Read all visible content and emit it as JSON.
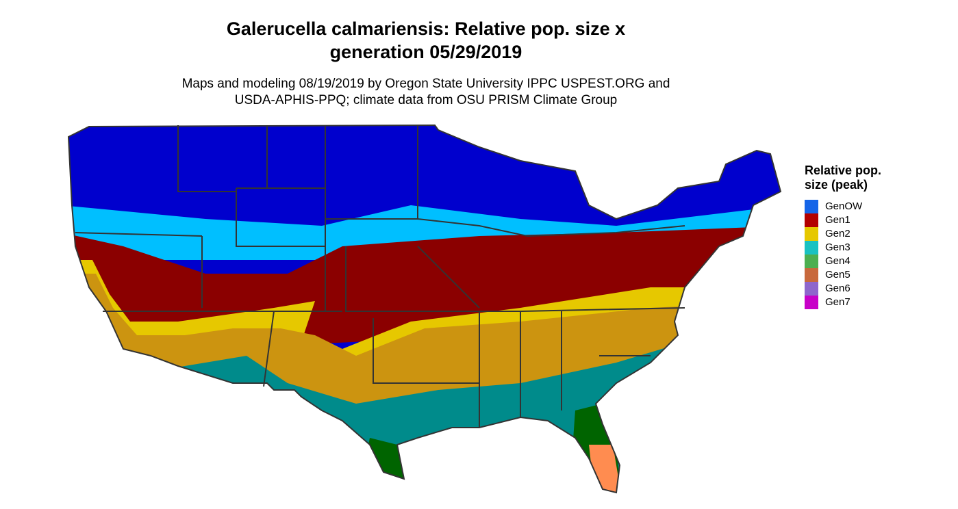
{
  "title": [
    "Galerucella calmariensis: Relative pop. size x",
    "generation 05/29/2019"
  ],
  "subtitle": [
    "Maps and modeling 08/19/2019 by Oregon State University IPPC USPEST.ORG and",
    "USDA-APHIS-PPQ; climate data from OSU PRISM Climate Group"
  ],
  "legend": {
    "title": [
      "Relative pop.",
      "size (peak)"
    ],
    "items": [
      {
        "label": "GenOW",
        "color": "#1565e8"
      },
      {
        "label": "Gen1",
        "color": "#b30000"
      },
      {
        "label": "Gen2",
        "color": "#e6c800"
      },
      {
        "label": "Gen3",
        "color": "#19c2c2"
      },
      {
        "label": "Gen4",
        "color": "#4caf50"
      },
      {
        "label": "Gen5",
        "color": "#c8693c"
      },
      {
        "label": "Gen6",
        "color": "#8e66cc"
      },
      {
        "label": "Gen7",
        "color": "#c800c8"
      }
    ]
  }
}
